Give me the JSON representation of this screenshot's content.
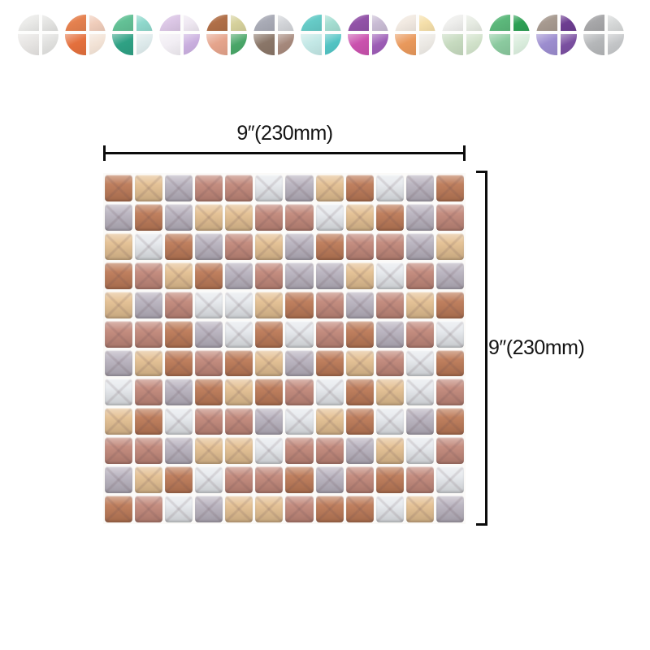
{
  "page": {
    "background": "#ffffff"
  },
  "variant_swatches": [
    {
      "name": "white",
      "colors": [
        "#ebebe9",
        "#e3e3e1",
        "#e7e5e3",
        "#dfdfdd"
      ]
    },
    {
      "name": "orange",
      "colors": [
        "#e5814f",
        "#f0cdbb",
        "#e4703d",
        "#f2e2d5"
      ]
    },
    {
      "name": "teal-green",
      "colors": [
        "#63c196",
        "#8fd8cc",
        "#2fa184",
        "#dce9ea"
      ]
    },
    {
      "name": "lavender",
      "colors": [
        "#dcc7e6",
        "#efe8f2",
        "#f2eef4",
        "#c9aede"
      ]
    },
    {
      "name": "brown-multi",
      "colors": [
        "#b06f48",
        "#d6d19c",
        "#e5a48c",
        "#49a668"
      ]
    },
    {
      "name": "gray-taupe",
      "colors": [
        "#a9abb6",
        "#d2d4d8",
        "#8a7668",
        "#a5887b"
      ]
    },
    {
      "name": "aqua",
      "colors": [
        "#66cbc7",
        "#a5ded2",
        "#c3e8e6",
        "#52c3c3"
      ]
    },
    {
      "name": "purple-magenta",
      "colors": [
        "#9253a8",
        "#c9bcd4",
        "#ca52ae",
        "#9c5cb5"
      ]
    },
    {
      "name": "cream-orange",
      "colors": [
        "#f2eae2",
        "#f5dfaa",
        "#e9995c",
        "#ebe8e3"
      ]
    },
    {
      "name": "pale-green",
      "colors": [
        "#efefed",
        "#e6ebe2",
        "#c6dabf",
        "#d0e1c9"
      ]
    },
    {
      "name": "green",
      "colors": [
        "#5cb87b",
        "#2ea055",
        "#8bca9f",
        "#d9ecdc"
      ]
    },
    {
      "name": "taupe-purple",
      "colors": [
        "#a79a90",
        "#6d3d91",
        "#9c8dcf",
        "#7a4fa0"
      ]
    },
    {
      "name": "silver-gray",
      "colors": [
        "#a7a7a9",
        "#d6d8d8",
        "#b5b7b9",
        "#c3c5c7"
      ]
    }
  ],
  "figure": {
    "width_label": "9″(230mm)",
    "height_label": "9″(230mm)",
    "grid": {
      "rows": 12,
      "cols": 12,
      "palette": {
        "c": "#bd7a57",
        "t": "#e4c092",
        "s": "#b9b3bf",
        "p": "#c2887a",
        "w": "#e6e9ed"
      },
      "palette_names": {
        "c": "terracotta",
        "t": "tan",
        "s": "silver-lilac",
        "p": "dusty-pink",
        "w": "white-blue"
      },
      "grout_color": "#fbfaf8",
      "tiles": [
        "ctsppwstcwsc",
        "scsttppwtcsp",
        "twcsptscppst",
        "cptcspsstwps",
        "tspwwtcpsptc",
        "ppcswcwpcspw",
        "stcpctsctpwc",
        "wpsctcpwctwp",
        "tcwppswtcwsc",
        "ppsttwppstwp",
        "stcwppcspcpw",
        "cpwsttpccwts"
      ]
    }
  }
}
